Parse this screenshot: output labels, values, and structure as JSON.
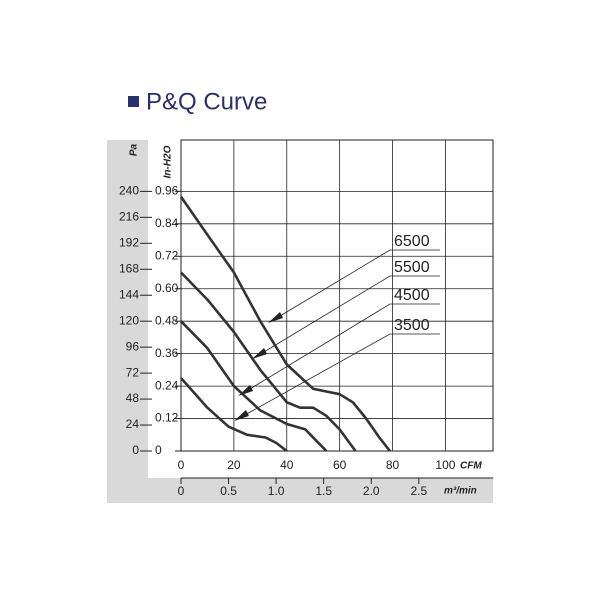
{
  "chart_data": {
    "type": "line",
    "title": "P&Q Curve",
    "xlabel": "CFM",
    "x2label": "m³/min",
    "ylabel": "In-H2O",
    "y2label": "Pa",
    "xlim": [
      0,
      118
    ],
    "xticks": [
      0,
      20,
      40,
      60,
      80,
      100
    ],
    "x2lim": [
      0,
      3.28
    ],
    "x2ticks": [
      0,
      {
        "value": 0.5,
        "label": "0.5"
      },
      {
        "value": 1.0,
        "label": "1.0"
      },
      {
        "value": 1.5,
        "label": "1.5"
      },
      {
        "value": 2.0,
        "label": "2.0"
      },
      {
        "value": 2.5,
        "label": "2.5"
      }
    ],
    "ylim": [
      0,
      1.15
    ],
    "yticks": [
      0,
      0.12,
      0.24,
      0.36,
      0.48,
      {
        "value": 0.6,
        "label": "0.60"
      },
      0.72,
      0.84,
      0.96
    ],
    "y2lim": [
      0,
      287.5
    ],
    "y2ticks": [
      0,
      24,
      48,
      72,
      96,
      120,
      144,
      168,
      192,
      216,
      240
    ],
    "grid": true,
    "series": [
      {
        "name": "6500",
        "color": "#333333",
        "x": [
          0,
          10,
          20,
          30,
          40,
          50,
          55,
          60,
          65,
          70,
          75,
          79
        ],
        "values": [
          0.94,
          0.8,
          0.66,
          0.48,
          0.32,
          0.23,
          0.22,
          0.21,
          0.18,
          0.12,
          0.05,
          0
        ]
      },
      {
        "name": "5500",
        "color": "#333333",
        "x": [
          0,
          10,
          20,
          30,
          40,
          45,
          50,
          55,
          60,
          66
        ],
        "values": [
          0.66,
          0.56,
          0.44,
          0.3,
          0.18,
          0.16,
          0.16,
          0.13,
          0.08,
          0
        ]
      },
      {
        "name": "4500",
        "color": "#333333",
        "x": [
          0,
          10,
          20,
          30,
          40,
          47,
          51,
          55
        ],
        "values": [
          0.48,
          0.38,
          0.24,
          0.15,
          0.1,
          0.08,
          0.04,
          0
        ]
      },
      {
        "name": "3500",
        "color": "#333333",
        "x": [
          0,
          10,
          18,
          25,
          32,
          36,
          40
        ],
        "values": [
          0.27,
          0.16,
          0.09,
          0.06,
          0.05,
          0.03,
          0
        ]
      }
    ]
  }
}
